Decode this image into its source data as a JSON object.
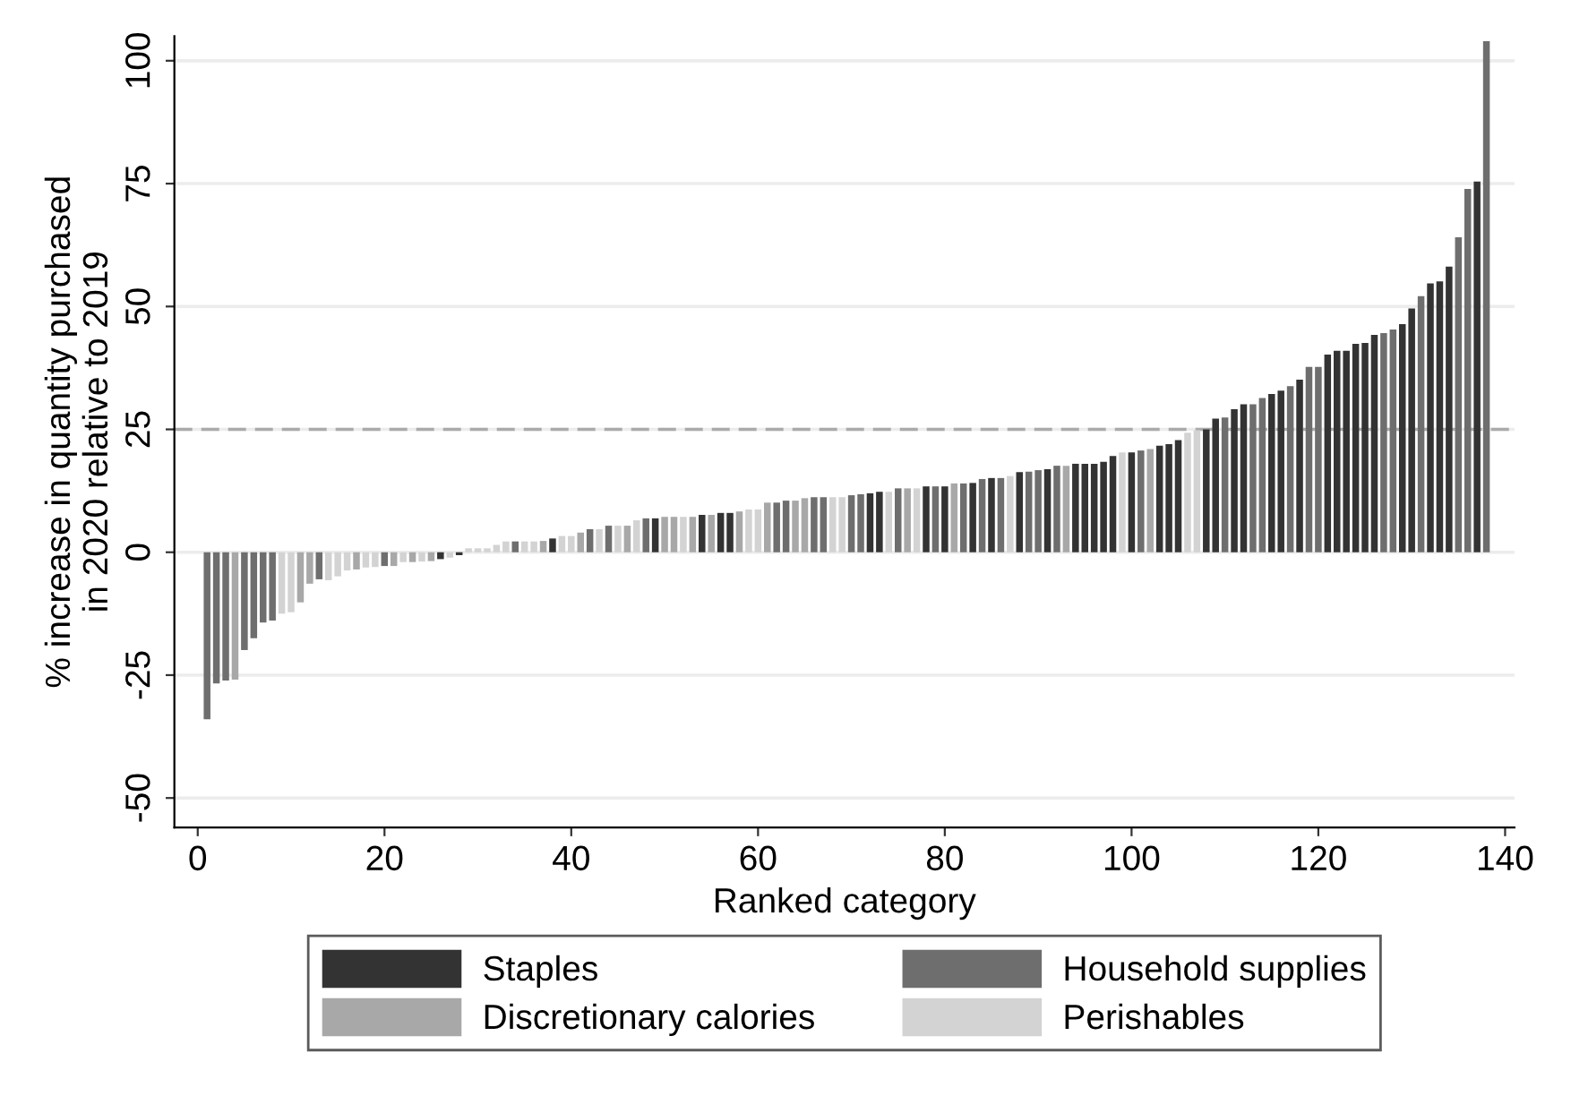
{
  "chart_data": {
    "type": "bar",
    "xlabel": "Ranked category",
    "ylabel": "% increase in quantity purchased\nin 2020 relative to 2019",
    "xlim": [
      -2.5,
      141
    ],
    "xticks": [
      0,
      20,
      40,
      60,
      80,
      100,
      120,
      140
    ],
    "ylim": [
      -56,
      105
    ],
    "yticks": [
      -50,
      -25,
      0,
      25,
      50,
      75,
      100
    ],
    "grid": "y",
    "legend": "bottom",
    "ref_lines": [
      {
        "axis": "y",
        "value": 25,
        "color": "#aaaaaa",
        "line_style": "dashed"
      }
    ],
    "series": [
      {
        "name": "Staples",
        "color": "#333333",
        "x": [
          26,
          28,
          38,
          49,
          54,
          56,
          57,
          72,
          73,
          78,
          80,
          83,
          85,
          88,
          91,
          94,
          95,
          96,
          97,
          98,
          100,
          103,
          104,
          105,
          108,
          109,
          111,
          112,
          115,
          116,
          118,
          121,
          122,
          123,
          124,
          125,
          126,
          129,
          130,
          132,
          133,
          134,
          137
        ],
        "values": [
          -1.4,
          -0.6,
          2.8,
          6.9,
          7.6,
          8.0,
          8.0,
          12.0,
          12.3,
          13.4,
          13.4,
          14.1,
          15.1,
          16.3,
          16.9,
          18.0,
          18.0,
          18.0,
          18.4,
          19.6,
          20.3,
          21.7,
          22.0,
          22.8,
          25.0,
          27.2,
          29.1,
          30.1,
          32.2,
          32.9,
          35.1,
          40.2,
          41.0,
          41.0,
          42.4,
          42.6,
          44.2,
          46.4,
          49.6,
          54.7,
          55.1,
          58.1,
          75.4
        ]
      },
      {
        "name": "Discretionary calories",
        "color": "#a8a8a8",
        "x": [
          4,
          11,
          12,
          17,
          21,
          23,
          25,
          37,
          41,
          46,
          50,
          51,
          53,
          55,
          58,
          61,
          64,
          65,
          76,
          81,
          93,
          102
        ],
        "values": [
          -25.9,
          -10.2,
          -6.4,
          -3.5,
          -2.8,
          -2.0,
          -1.8,
          2.3,
          4.0,
          5.4,
          7.2,
          7.2,
          7.2,
          7.6,
          8.3,
          10.1,
          10.5,
          11.0,
          13.0,
          14.0,
          17.6,
          21.0
        ]
      },
      {
        "name": "Household supplies",
        "color": "#6e6e6e",
        "x": [
          1,
          2,
          3,
          5,
          6,
          7,
          8,
          13,
          20,
          34,
          42,
          44,
          48,
          62,
          63,
          66,
          67,
          70,
          71,
          75,
          79,
          82,
          84,
          86,
          89,
          90,
          92,
          101,
          110,
          113,
          114,
          117,
          119,
          120,
          127,
          128,
          131,
          135,
          136,
          138
        ],
        "values": [
          -34,
          -26.7,
          -26.1,
          -19.9,
          -17.5,
          -14.3,
          -13.9,
          -5.5,
          -2.8,
          2.2,
          4.7,
          5.4,
          6.9,
          10.1,
          10.5,
          11.2,
          11.2,
          11.6,
          11.8,
          13.0,
          13.4,
          14.0,
          14.9,
          15.1,
          16.4,
          16.7,
          17.6,
          20.7,
          27.4,
          30.1,
          31.4,
          33.8,
          37.7,
          37.7,
          44.6,
          45.3,
          52.1,
          64.1,
          73.9,
          104
        ]
      },
      {
        "name": "Perishables",
        "color": "#d3d3d3",
        "x": [
          9,
          10,
          14,
          15,
          16,
          18,
          19,
          22,
          24,
          27,
          29,
          30,
          31,
          32,
          33,
          35,
          36,
          39,
          40,
          43,
          45,
          47,
          52,
          59,
          60,
          68,
          69,
          74,
          77,
          87,
          99,
          106,
          107
        ],
        "values": [
          -12.5,
          -12.2,
          -5.7,
          -4.9,
          -3.7,
          -3.1,
          -3.0,
          -2.0,
          -1.9,
          -1.1,
          0.8,
          0.8,
          0.8,
          1.5,
          2.2,
          2.2,
          2.2,
          3.3,
          3.3,
          4.7,
          5.4,
          6.5,
          7.2,
          8.7,
          8.7,
          11.2,
          11.2,
          12.3,
          13.0,
          15.5,
          20.3,
          24.3,
          24.8
        ]
      }
    ]
  }
}
